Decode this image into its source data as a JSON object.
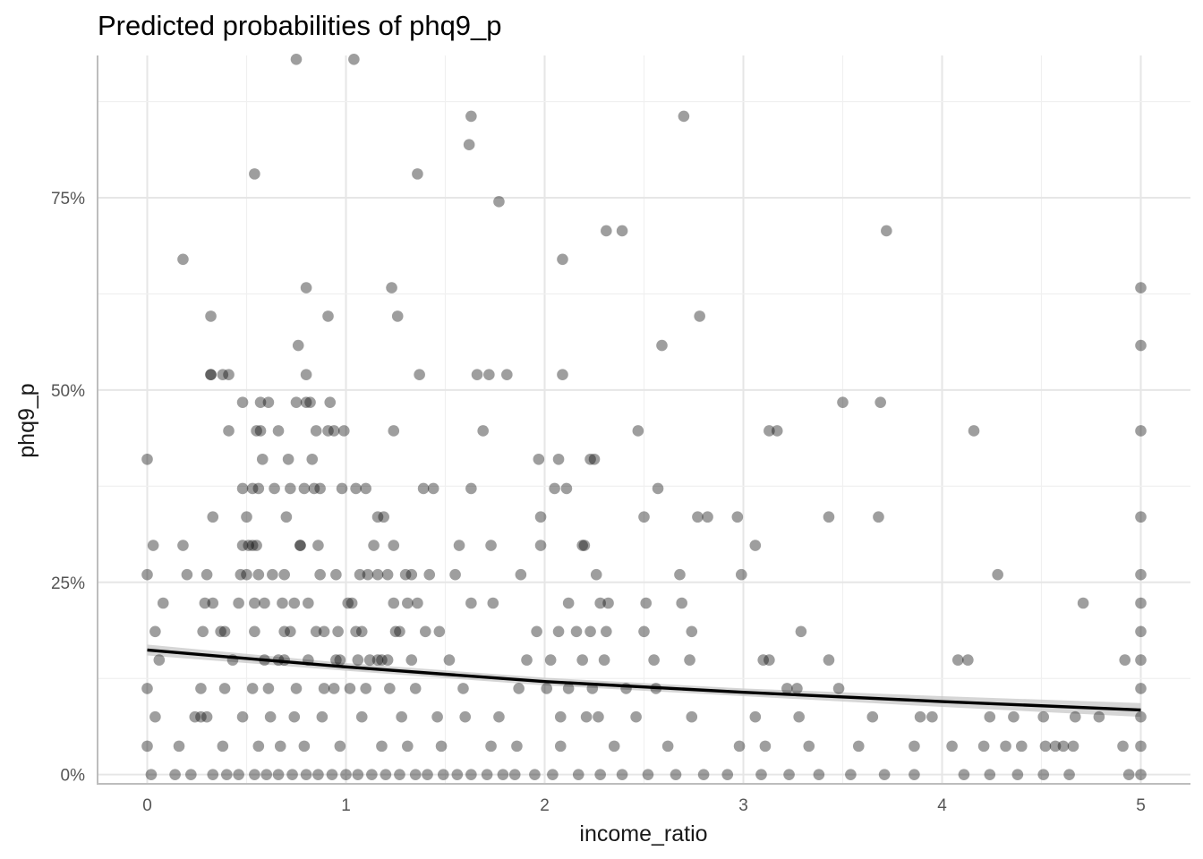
{
  "chart_data": {
    "type": "scatter",
    "title": "Predicted probabilities of phq9_p",
    "xlabel": "income_ratio",
    "ylabel": "phq9_p",
    "xlim": [
      -0.25,
      5.25
    ],
    "ylim": [
      -0.012,
      0.935
    ],
    "x_ticks": [
      0,
      1,
      2,
      3,
      4,
      5
    ],
    "x_tick_labels": [
      "0",
      "1",
      "2",
      "3",
      "4",
      "5"
    ],
    "y_ticks": [
      0,
      0.25,
      0.5,
      0.75
    ],
    "y_tick_labels": [
      "0%",
      "25%",
      "50%",
      "75%"
    ],
    "grid": true,
    "point_color": "#000000",
    "point_alpha": 0.38,
    "line_color": "#000000",
    "ribbon_color": "#c8c8c8",
    "fit_line": {
      "x": [
        0,
        1,
        2,
        3,
        4,
        5
      ],
      "y": [
        0.162,
        0.14,
        0.121,
        0.107,
        0.095,
        0.084
      ],
      "ci_low": [
        0.155,
        0.135,
        0.116,
        0.102,
        0.088,
        0.075
      ],
      "ci_high": [
        0.169,
        0.145,
        0.126,
        0.112,
        0.102,
        0.093
      ]
    },
    "points": {
      "x": [
        0.75,
        1.04,
        1.63,
        2.7,
        1.62,
        0.54,
        1.36,
        0.18,
        1.77,
        2.31,
        2.39,
        3.72,
        0.32,
        0.8,
        1.23,
        2.09,
        5.0,
        0.32,
        0.91,
        1.26,
        2.78,
        0.76,
        2.59,
        5.0,
        0.32,
        0.38,
        0.41,
        0.8,
        1.37,
        1.66,
        1.72,
        1.81,
        2.09,
        0.48,
        0.57,
        0.61,
        0.75,
        0.8,
        0.82,
        0.92,
        3.5,
        3.69,
        0.41,
        0.55,
        0.57,
        0.66,
        0.85,
        0.91,
        0.94,
        0.99,
        1.24,
        1.69,
        2.47,
        3.13,
        3.17,
        4.16,
        5.0,
        0.0,
        0.58,
        0.71,
        0.83,
        1.05,
        1.97,
        2.07,
        2.23,
        0.48,
        0.53,
        0.56,
        0.64,
        0.72,
        0.79,
        0.84,
        0.87,
        0.98,
        1.1,
        1.39,
        1.44,
        1.63,
        2.05,
        2.11,
        2.25,
        2.57,
        0.33,
        0.5,
        0.7,
        0.77,
        1.16,
        1.19,
        1.98,
        2.5,
        2.77,
        2.82,
        2.97,
        3.43,
        3.68,
        5.0,
        0.03,
        0.18,
        0.48,
        0.51,
        0.53,
        0.55,
        0.77,
        0.86,
        1.14,
        1.24,
        1.57,
        1.73,
        1.98,
        2.19,
        2.2,
        3.06,
        0.0,
        0.2,
        0.3,
        0.47,
        0.5,
        0.56,
        0.63,
        0.69,
        0.87,
        0.95,
        1.07,
        1.11,
        1.16,
        1.21,
        1.3,
        1.33,
        1.42,
        1.55,
        1.88,
        2.26,
        2.68,
        2.99,
        4.28,
        5.0,
        0.08,
        0.29,
        0.33,
        0.46,
        0.54,
        0.59,
        0.68,
        0.74,
        0.81,
        1.01,
        1.03,
        1.24,
        1.31,
        1.36,
        1.63,
        1.74,
        2.12,
        2.28,
        2.32,
        2.51,
        2.69,
        4.71,
        5.0,
        0.04,
        0.28,
        0.37,
        0.39,
        0.54,
        0.69,
        0.72,
        0.85,
        0.89,
        0.96,
        1.05,
        1.08,
        1.25,
        1.27,
        1.4,
        1.47,
        1.96,
        2.07,
        2.16,
        2.23,
        2.31,
        2.5,
        2.74,
        3.29,
        5.0,
        0.06,
        0.43,
        0.59,
        0.66,
        0.69,
        0.81,
        0.95,
        0.97,
        1.06,
        1.12,
        1.16,
        1.18,
        1.21,
        1.33,
        1.52,
        1.91,
        2.03,
        2.19,
        2.3,
        2.55,
        2.73,
        3.1,
        3.13,
        3.43,
        4.08,
        4.13,
        4.92,
        5.0,
        0.0,
        0.27,
        0.39,
        0.53,
        0.61,
        0.75,
        0.89,
        0.94,
        1.02,
        1.1,
        1.22,
        1.35,
        1.59,
        1.87,
        2.01,
        2.12,
        2.24,
        2.41,
        2.56,
        3.22,
        3.27,
        3.48,
        5.0,
        0.04,
        0.24,
        0.27,
        0.3,
        0.48,
        0.62,
        0.74,
        0.88,
        1.08,
        1.28,
        1.46,
        1.6,
        1.77,
        2.08,
        2.21,
        2.27,
        2.46,
        2.74,
        3.06,
        3.28,
        3.65,
        3.89,
        3.95,
        4.24,
        4.36,
        4.51,
        4.67,
        4.79,
        5.0,
        0.0,
        0.16,
        0.38,
        0.56,
        0.67,
        0.79,
        0.97,
        1.18,
        1.31,
        1.48,
        1.73,
        1.86,
        2.08,
        2.35,
        2.62,
        2.98,
        3.11,
        3.33,
        3.58,
        3.86,
        4.05,
        4.21,
        4.32,
        4.4,
        4.52,
        4.57,
        4.61,
        4.66,
        4.91,
        5.0,
        0.02,
        0.14,
        0.22,
        0.33,
        0.4,
        0.46,
        0.54,
        0.6,
        0.66,
        0.73,
        0.8,
        0.86,
        0.93,
        1.0,
        1.06,
        1.13,
        1.2,
        1.27,
        1.35,
        1.41,
        1.49,
        1.56,
        1.63,
        1.71,
        1.79,
        1.85,
        1.95,
        2.04,
        2.17,
        2.28,
        2.39,
        2.52,
        2.66,
        2.8,
        2.92,
        3.09,
        3.23,
        3.38,
        3.54,
        3.71,
        3.86,
        4.11,
        4.24,
        4.38,
        4.51,
        4.64,
        4.94,
        5.0
      ],
      "y": [
        0.93,
        0.93,
        0.856,
        0.856,
        0.819,
        0.781,
        0.781,
        0.67,
        0.745,
        0.707,
        0.707,
        0.707,
        0.596,
        0.633,
        0.633,
        0.67,
        0.633,
        0.52,
        0.596,
        0.596,
        0.596,
        0.558,
        0.558,
        0.558,
        0.52,
        0.52,
        0.52,
        0.52,
        0.52,
        0.52,
        0.52,
        0.52,
        0.52,
        0.484,
        0.484,
        0.484,
        0.484,
        0.484,
        0.484,
        0.484,
        0.484,
        0.484,
        0.447,
        0.447,
        0.447,
        0.447,
        0.447,
        0.447,
        0.447,
        0.447,
        0.447,
        0.447,
        0.447,
        0.447,
        0.447,
        0.447,
        0.447,
        0.41,
        0.41,
        0.41,
        0.41,
        0.372,
        0.41,
        0.41,
        0.41,
        0.372,
        0.372,
        0.372,
        0.372,
        0.372,
        0.372,
        0.372,
        0.372,
        0.372,
        0.372,
        0.372,
        0.372,
        0.372,
        0.372,
        0.372,
        0.41,
        0.372,
        0.335,
        0.335,
        0.335,
        0.298,
        0.335,
        0.335,
        0.335,
        0.335,
        0.335,
        0.335,
        0.335,
        0.335,
        0.335,
        0.335,
        0.298,
        0.298,
        0.298,
        0.298,
        0.298,
        0.298,
        0.298,
        0.298,
        0.298,
        0.298,
        0.298,
        0.298,
        0.298,
        0.298,
        0.298,
        0.298,
        0.26,
        0.26,
        0.26,
        0.26,
        0.26,
        0.26,
        0.26,
        0.26,
        0.26,
        0.26,
        0.26,
        0.26,
        0.26,
        0.26,
        0.26,
        0.26,
        0.26,
        0.26,
        0.26,
        0.26,
        0.26,
        0.26,
        0.26,
        0.26,
        0.223,
        0.223,
        0.223,
        0.223,
        0.223,
        0.223,
        0.223,
        0.223,
        0.223,
        0.223,
        0.223,
        0.223,
        0.223,
        0.223,
        0.223,
        0.223,
        0.223,
        0.223,
        0.223,
        0.223,
        0.223,
        0.223,
        0.223,
        0.186,
        0.186,
        0.186,
        0.186,
        0.186,
        0.186,
        0.186,
        0.186,
        0.186,
        0.186,
        0.186,
        0.186,
        0.186,
        0.186,
        0.186,
        0.186,
        0.186,
        0.186,
        0.186,
        0.186,
        0.186,
        0.186,
        0.186,
        0.186,
        0.186,
        0.149,
        0.149,
        0.149,
        0.149,
        0.149,
        0.149,
        0.149,
        0.149,
        0.149,
        0.149,
        0.149,
        0.149,
        0.149,
        0.149,
        0.149,
        0.149,
        0.149,
        0.149,
        0.149,
        0.149,
        0.149,
        0.149,
        0.149,
        0.149,
        0.149,
        0.149,
        0.149,
        0.149,
        0.112,
        0.112,
        0.112,
        0.112,
        0.112,
        0.112,
        0.112,
        0.112,
        0.112,
        0.112,
        0.112,
        0.112,
        0.112,
        0.112,
        0.112,
        0.112,
        0.112,
        0.112,
        0.112,
        0.112,
        0.112,
        0.112,
        0.112,
        0.075,
        0.075,
        0.075,
        0.075,
        0.075,
        0.075,
        0.075,
        0.075,
        0.075,
        0.075,
        0.075,
        0.075,
        0.075,
        0.075,
        0.075,
        0.075,
        0.075,
        0.075,
        0.075,
        0.075,
        0.075,
        0.075,
        0.075,
        0.075,
        0.075,
        0.075,
        0.075,
        0.075,
        0.075,
        0.037,
        0.037,
        0.037,
        0.037,
        0.037,
        0.037,
        0.037,
        0.037,
        0.037,
        0.037,
        0.037,
        0.037,
        0.037,
        0.037,
        0.037,
        0.037,
        0.037,
        0.037,
        0.037,
        0.037,
        0.037,
        0.037,
        0.037,
        0.037,
        0.037,
        0.037,
        0.037,
        0.037,
        0.037,
        0.037,
        0.0,
        0.0,
        0.0,
        0.0,
        0.0,
        0.0,
        0.0,
        0.0,
        0.0,
        0.0,
        0.0,
        0.0,
        0.0,
        0.0,
        0.0,
        0.0,
        0.0,
        0.0,
        0.0,
        0.0,
        0.0,
        0.0,
        0.0,
        0.0,
        0.0,
        0.0,
        0.0,
        0.0,
        0.0,
        0.0,
        0.0,
        0.0,
        0.0,
        0.0,
        0.0,
        0.0,
        0.0,
        0.0,
        0.0,
        0.0,
        0.0,
        0.0,
        0.0,
        0.0,
        0.0,
        0.0,
        0.0,
        0.0
      ]
    }
  }
}
